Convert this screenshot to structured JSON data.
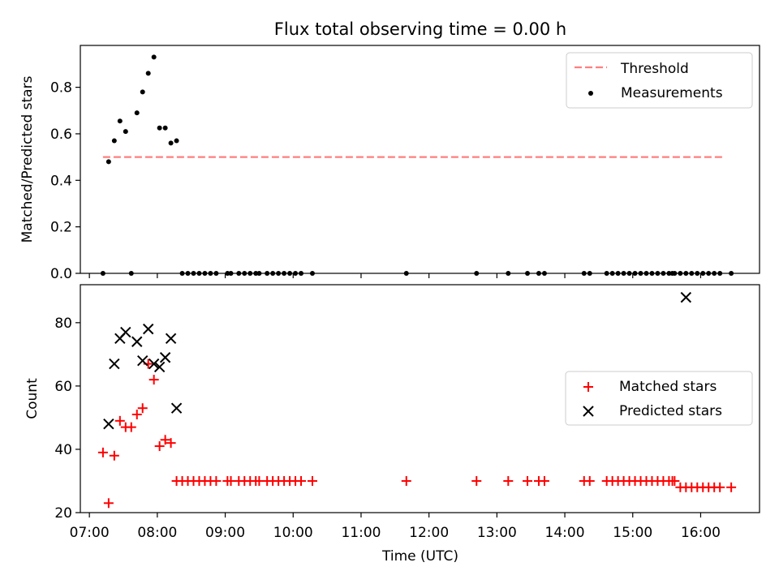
{
  "title": "Flux total observing time = 0.00 h",
  "chart_data": [
    {
      "type": "scatter",
      "panel": "top",
      "ylabel": "Matched/Predicted stars",
      "xlabel": "",
      "ylim": [
        0,
        0.98
      ],
      "yticks": [
        0.0,
        0.2,
        0.4,
        0.6,
        0.8
      ],
      "ytick_labels": [
        "0.0",
        "0.2",
        "0.4",
        "0.6",
        "0.8"
      ],
      "legend_position": "top-right",
      "threshold": {
        "name": "Threshold",
        "value": 0.5,
        "x_start": "07:12",
        "x_end": "16:20",
        "color": "#ff7f7f",
        "style": "dashed"
      },
      "series": [
        {
          "name": "Measurements",
          "color": "#000000",
          "marker": "dot",
          "x": [
            "07:12",
            "07:17",
            "07:22",
            "07:27",
            "07:32",
            "07:37",
            "07:42",
            "07:47",
            "07:52",
            "07:57",
            "08:02",
            "08:07",
            "08:12",
            "08:17",
            "08:22",
            "08:27",
            "08:32",
            "08:37",
            "08:42",
            "08:47",
            "08:52",
            "09:02",
            "09:05",
            "09:12",
            "09:17",
            "09:22",
            "09:27",
            "09:30",
            "09:37",
            "09:42",
            "09:47",
            "09:52",
            "09:57",
            "10:02",
            "10:07",
            "10:17",
            "11:40",
            "12:42",
            "13:10",
            "13:27",
            "13:37",
            "13:42",
            "14:17",
            "14:22",
            "14:37",
            "14:42",
            "14:47",
            "14:52",
            "14:57",
            "15:02",
            "15:07",
            "15:12",
            "15:17",
            "15:22",
            "15:27",
            "15:32",
            "15:35",
            "15:37",
            "15:42",
            "15:47",
            "15:52",
            "15:57",
            "16:02",
            "16:07",
            "16:12",
            "16:17",
            "16:27"
          ],
          "y": [
            0,
            0.48,
            0.57,
            0.655,
            0.61,
            0,
            0.69,
            0.78,
            0.86,
            0.93,
            0.625,
            0.625,
            0.56,
            0.57,
            0,
            0,
            0,
            0,
            0,
            0,
            0,
            0,
            0,
            0,
            0,
            0,
            0,
            0,
            0,
            0,
            0,
            0,
            0,
            0,
            0,
            0,
            0,
            0,
            0,
            0,
            0,
            0,
            0,
            0,
            0,
            0,
            0,
            0,
            0,
            0,
            0,
            0,
            0,
            0,
            0,
            0,
            0,
            0,
            0,
            0,
            0,
            0,
            0,
            0,
            0,
            0,
            0
          ]
        }
      ]
    },
    {
      "type": "scatter",
      "panel": "bottom",
      "ylabel": "Count",
      "xlabel": "Time (UTC)",
      "ylim": [
        20,
        92
      ],
      "yticks": [
        20,
        40,
        60,
        80
      ],
      "ytick_labels": [
        "20",
        "40",
        "60",
        "80"
      ],
      "xlim": [
        "06:52",
        "16:52"
      ],
      "xticks": [
        "07:00",
        "08:00",
        "09:00",
        "10:00",
        "11:00",
        "12:00",
        "13:00",
        "14:00",
        "15:00",
        "16:00"
      ],
      "legend_position": "center-right",
      "series": [
        {
          "name": "Matched stars",
          "color": "#ff0000",
          "marker": "plus",
          "x": [
            "07:12",
            "07:17",
            "07:22",
            "07:27",
            "07:32",
            "07:37",
            "07:42",
            "07:47",
            "07:52",
            "07:57",
            "08:02",
            "08:07",
            "08:12",
            "08:17",
            "08:22",
            "08:27",
            "08:32",
            "08:37",
            "08:42",
            "08:47",
            "08:52",
            "09:02",
            "09:05",
            "09:12",
            "09:17",
            "09:22",
            "09:27",
            "09:30",
            "09:37",
            "09:42",
            "09:47",
            "09:52",
            "09:57",
            "10:02",
            "10:07",
            "10:17",
            "11:40",
            "12:42",
            "13:10",
            "13:27",
            "13:37",
            "13:42",
            "14:17",
            "14:22",
            "14:37",
            "14:42",
            "14:47",
            "14:52",
            "14:57",
            "15:02",
            "15:07",
            "15:12",
            "15:17",
            "15:22",
            "15:27",
            "15:32",
            "15:35",
            "15:37",
            "15:42",
            "15:47",
            "15:52",
            "15:57",
            "16:02",
            "16:07",
            "16:12",
            "16:17",
            "16:27"
          ],
          "y": [
            39,
            23,
            38,
            49,
            47,
            47,
            51,
            53,
            67,
            62,
            41,
            43,
            42,
            30,
            30,
            30,
            30,
            30,
            30,
            30,
            30,
            30,
            30,
            30,
            30,
            30,
            30,
            30,
            30,
            30,
            30,
            30,
            30,
            30,
            30,
            30,
            30,
            30,
            30,
            30,
            30,
            30,
            30,
            30,
            30,
            30,
            30,
            30,
            30,
            30,
            30,
            30,
            30,
            30,
            30,
            30,
            30,
            30,
            28,
            28,
            28,
            28,
            28,
            28,
            28,
            28,
            28
          ]
        },
        {
          "name": "Predicted stars",
          "color": "#000000",
          "marker": "x",
          "x": [
            "07:17",
            "07:22",
            "07:27",
            "07:32",
            "07:42",
            "07:47",
            "07:52",
            "07:57",
            "08:02",
            "08:07",
            "08:12",
            "08:17",
            "15:47"
          ],
          "y": [
            48,
            67,
            75,
            77,
            74,
            68,
            78,
            67,
            66,
            69,
            75,
            53,
            88
          ]
        }
      ]
    }
  ]
}
